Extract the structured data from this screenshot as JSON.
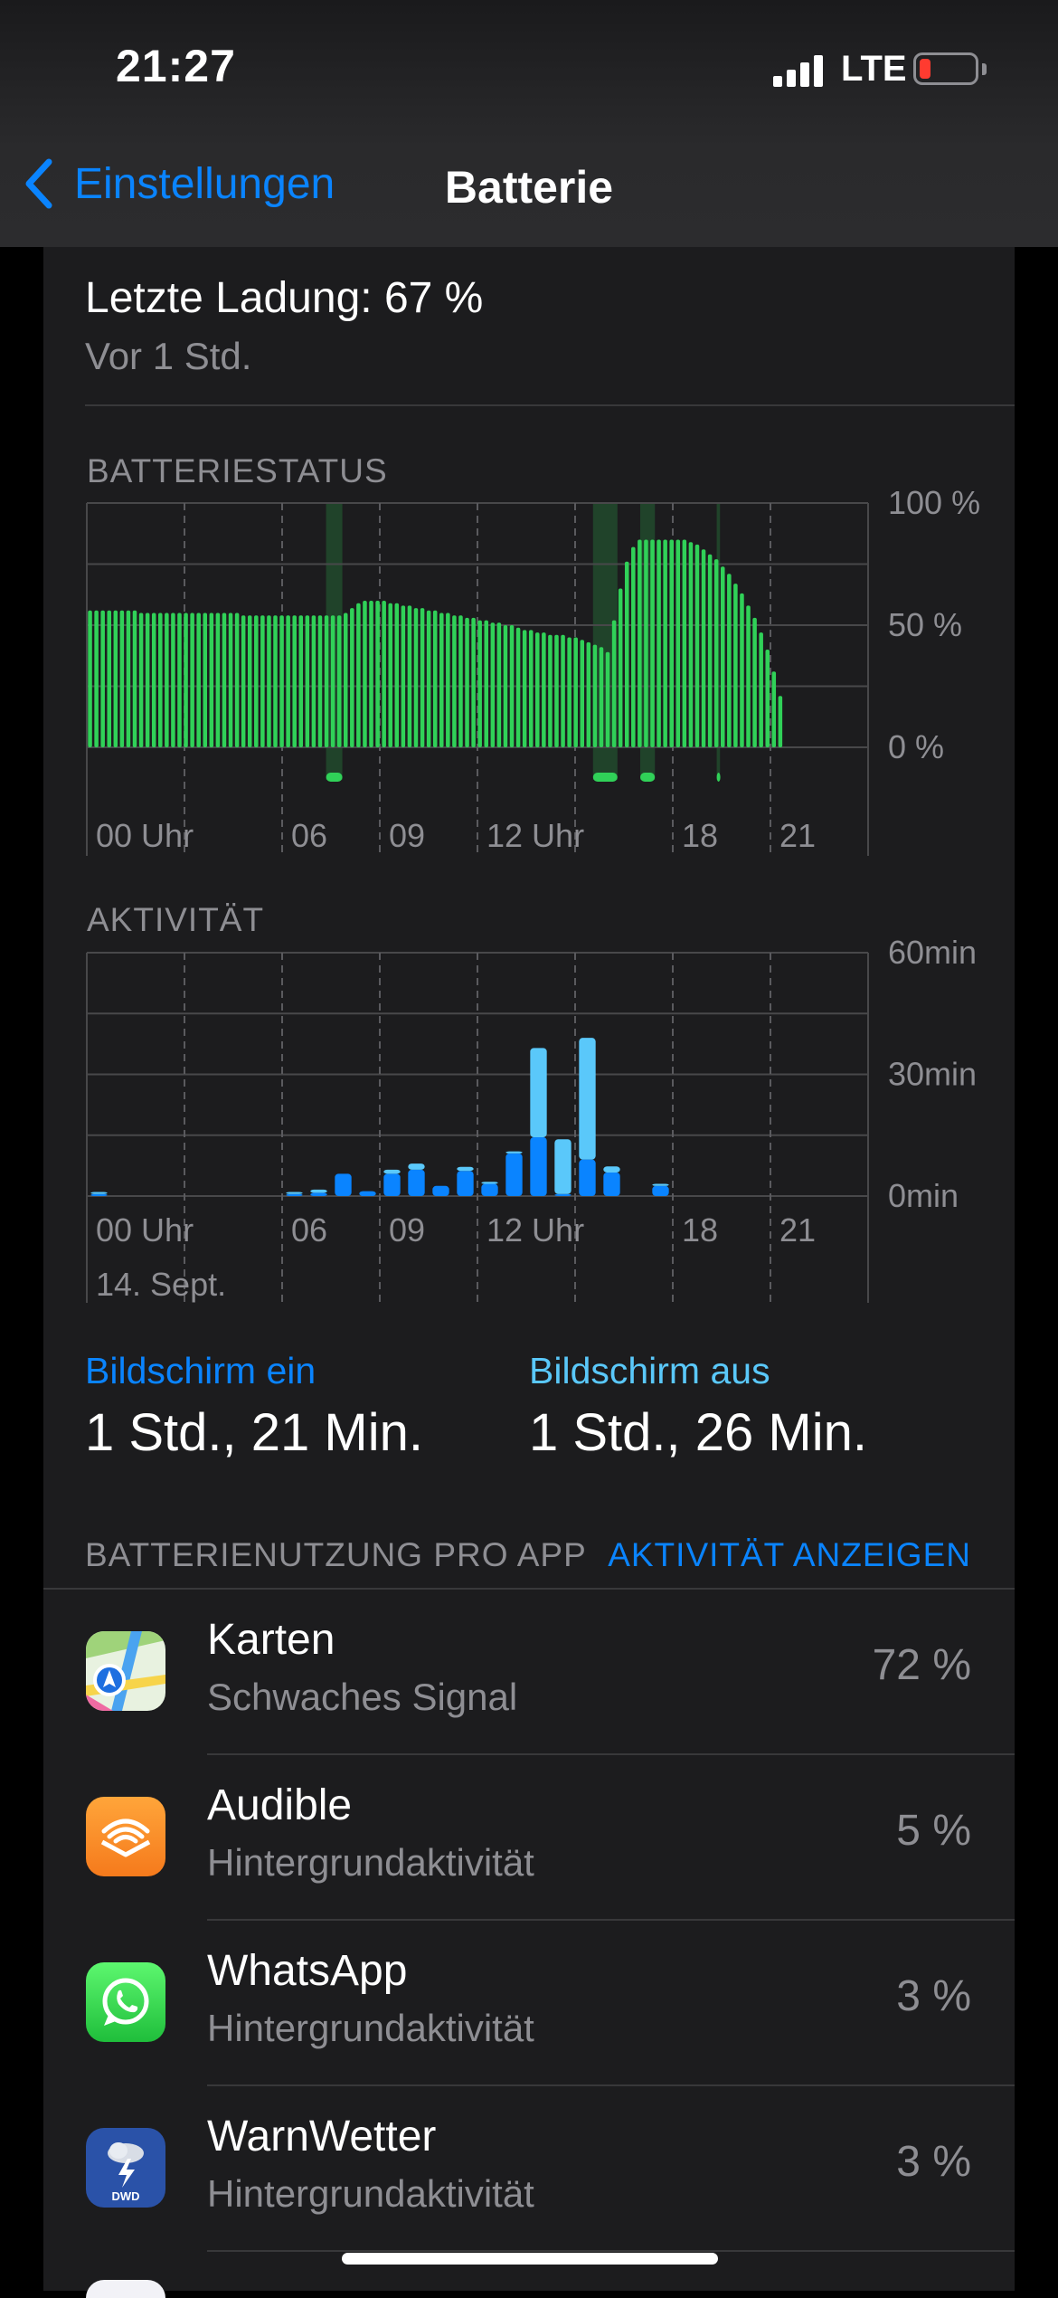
{
  "status_bar": {
    "time": "21:27",
    "network": "LTE",
    "battery_color": "#ff3b30"
  },
  "nav": {
    "back_label": "Einstellungen",
    "title": "Batterie"
  },
  "last_charge": {
    "title": "Letzte Ladung: 67 %",
    "subtitle": "Vor 1 Std."
  },
  "battery_section": {
    "label": "BATTERIESTATUS"
  },
  "activity_section": {
    "label": "AKTIVITÄT",
    "date": "14. Sept."
  },
  "chart_data": [
    {
      "type": "bar",
      "name": "battery_level",
      "y_tick_labels": [
        "100 %",
        "50 %",
        "0 %"
      ],
      "ylim": [
        0,
        100
      ],
      "x_tick_labels": [
        "00 Uhr",
        "06",
        "09",
        "12 Uhr",
        "18",
        "21"
      ],
      "x_tick_hours": [
        0,
        6,
        9,
        12,
        18,
        21
      ],
      "xlim_hours": [
        0,
        24
      ],
      "color": "#30d158",
      "values": [
        56,
        56,
        56,
        56,
        56,
        56,
        56,
        56,
        55,
        55,
        55,
        55,
        55,
        55,
        55,
        55,
        55,
        55,
        55,
        55,
        55,
        55,
        55,
        55,
        54,
        54,
        54,
        54,
        54,
        54,
        54,
        54,
        54,
        54,
        54,
        54,
        54,
        54,
        54,
        54,
        55,
        57,
        59,
        60,
        60,
        60,
        60,
        59,
        59,
        58,
        58,
        57,
        57,
        56,
        56,
        55,
        55,
        54,
        54,
        53,
        53,
        52,
        52,
        51,
        51,
        50,
        50,
        49,
        48,
        48,
        47,
        47,
        46,
        46,
        46,
        45,
        45,
        44,
        43,
        42,
        41,
        39,
        52,
        65,
        76,
        82,
        85,
        85,
        85,
        85,
        85,
        85,
        85,
        85,
        84,
        83,
        81,
        79,
        77,
        74,
        71,
        67,
        63,
        58,
        53,
        47,
        40,
        31,
        21
      ],
      "charging_intervals_hours": [
        [
          7.35,
          7.85
        ],
        [
          15.55,
          16.3
        ],
        [
          17.0,
          17.45
        ],
        [
          19.35,
          19.45
        ]
      ],
      "grid": true
    },
    {
      "type": "bar",
      "name": "activity",
      "y_tick_labels": [
        "60min",
        "30min",
        "0min"
      ],
      "ylim": [
        0,
        60
      ],
      "x_tick_labels": [
        "00 Uhr",
        "06",
        "09",
        "12 Uhr",
        "18",
        "21"
      ],
      "x_tick_hours": [
        0,
        6,
        9,
        12,
        18,
        21
      ],
      "xlim_hours": [
        0,
        24
      ],
      "series": [
        {
          "name": "Bildschirm ein",
          "color": "#0a84ff",
          "values": [
            0.5,
            0,
            0,
            0,
            0,
            0,
            0,
            0,
            0.5,
            0.8,
            5.5,
            1.2,
            5.5,
            6.5,
            2.5,
            6.2,
            3,
            10.5,
            14.5,
            0.5,
            9,
            5.8,
            0,
            2.5,
            0,
            0,
            0,
            0,
            0,
            0,
            0,
            0
          ]
        },
        {
          "name": "Bildschirm aus",
          "color": "#5ac8fa",
          "values": [
            0.5,
            0,
            0,
            0,
            0,
            0,
            0,
            0,
            0.5,
            0.8,
            0,
            0,
            1,
            1.5,
            0,
            1,
            0.5,
            0.5,
            22,
            13.5,
            30,
            1.5,
            0,
            0.5,
            0,
            0,
            0,
            0,
            0,
            0,
            0,
            0
          ]
        }
      ],
      "grid": true
    }
  ],
  "screen_time": {
    "on_label": "Bildschirm ein",
    "on_value": "1 Std., 21 Min.",
    "off_label": "Bildschirm aus",
    "off_value": "1 Std., 26 Min."
  },
  "app_usage": {
    "label": "BATTERIENUTZUNG PRO APP",
    "action": "AKTIVITÄT ANZEIGEN",
    "apps": [
      {
        "name": "Karten",
        "subtitle": "Schwaches Signal",
        "percent": "72 %",
        "icon": "maps-icon"
      },
      {
        "name": "Audible",
        "subtitle": "Hintergrundaktivität",
        "percent": "5 %",
        "icon": "audible-icon"
      },
      {
        "name": "WhatsApp",
        "subtitle": "Hintergrundaktivität",
        "percent": "3 %",
        "icon": "whatsapp-icon"
      },
      {
        "name": "WarnWetter",
        "subtitle": "Hintergrundaktivität",
        "percent": "3 %",
        "icon": "warnwetter-icon",
        "icon_text": "DWD"
      }
    ]
  }
}
